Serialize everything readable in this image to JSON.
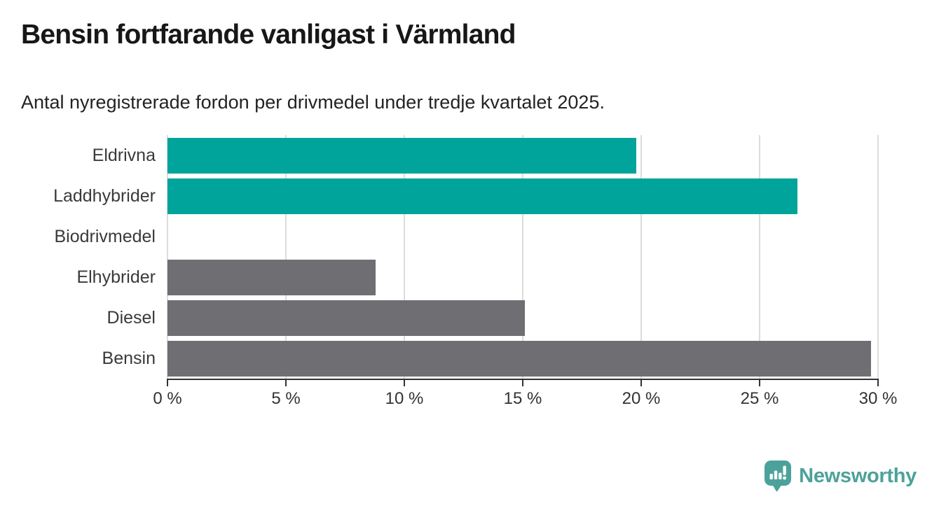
{
  "header": {
    "title": "Bensin fortfarande vanligast i Värmland",
    "subtitle": "Antal nyregistrerade fordon per drivmedel under tredje kvartalet 2025."
  },
  "chart_data": {
    "type": "bar",
    "orientation": "horizontal",
    "title": "Bensin fortfarande vanligast i Värmland",
    "subtitle": "Antal nyregistrerade fordon per drivmedel under tredje kvartalet 2025.",
    "categories": [
      "Eldrivna",
      "Laddhybrider",
      "Biodrivmedel",
      "Elhybrider",
      "Diesel",
      "Bensin"
    ],
    "values": [
      19.8,
      26.6,
      0,
      8.8,
      15.1,
      29.7
    ],
    "unit": "%",
    "bar_colors": [
      "#00a49a",
      "#00a49a",
      "#6e6e73",
      "#6e6e73",
      "#6e6e73",
      "#6e6e73"
    ],
    "xlim": [
      0,
      30
    ],
    "x_tick_values": [
      0,
      5,
      10,
      15,
      20,
      25,
      30
    ],
    "x_ticks": [
      "0 %",
      "5 %",
      "10 %",
      "15 %",
      "20 %",
      "25 %",
      "30 %"
    ],
    "xlabel": "",
    "ylabel": "",
    "grid": true,
    "legend_position": "none"
  },
  "colors": {
    "highlight_teal": "#00a49a",
    "bar_gray": "#6e6e73",
    "gridline": "#dcdcdc",
    "axis": "#333333",
    "title_text": "#171717",
    "label_text": "#3a3a3a",
    "brand_teal": "#4ca29a"
  },
  "footer": {
    "brand": "Newsworthy"
  }
}
